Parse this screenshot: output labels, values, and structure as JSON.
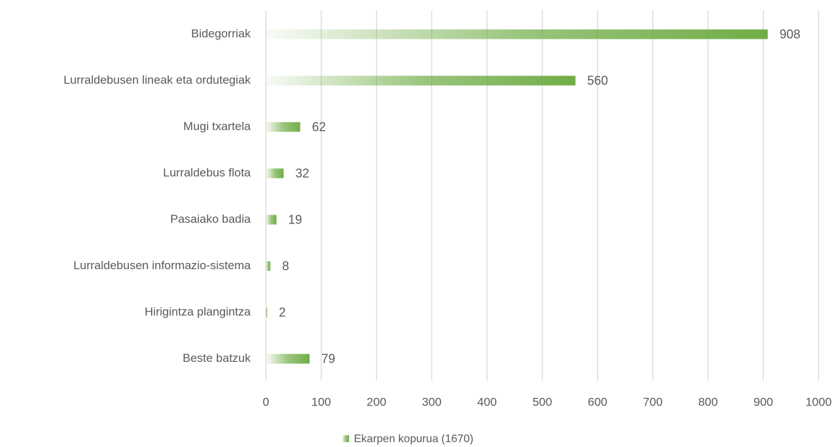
{
  "chart_data": {
    "type": "bar",
    "orientation": "horizontal",
    "categories": [
      "Bidegorriak",
      "Lurraldebusen lineak eta ordutegiak",
      "Mugi txartela",
      "Lurraldebus flota",
      "Pasaiako badia",
      "Lurraldebusen informazio-sistema",
      "Hirigintza plangintza",
      "Beste batzuk"
    ],
    "series": [
      {
        "name": "Ekarpen kopurua (1670)",
        "color": "#70ad47",
        "values": [
          908,
          560,
          62,
          32,
          19,
          8,
          2,
          79
        ]
      }
    ],
    "xlim": [
      0,
      1000
    ],
    "xticks": [
      0,
      100,
      200,
      300,
      400,
      500,
      600,
      700,
      800,
      900,
      1000
    ],
    "grid": true,
    "legend": "bottom"
  }
}
